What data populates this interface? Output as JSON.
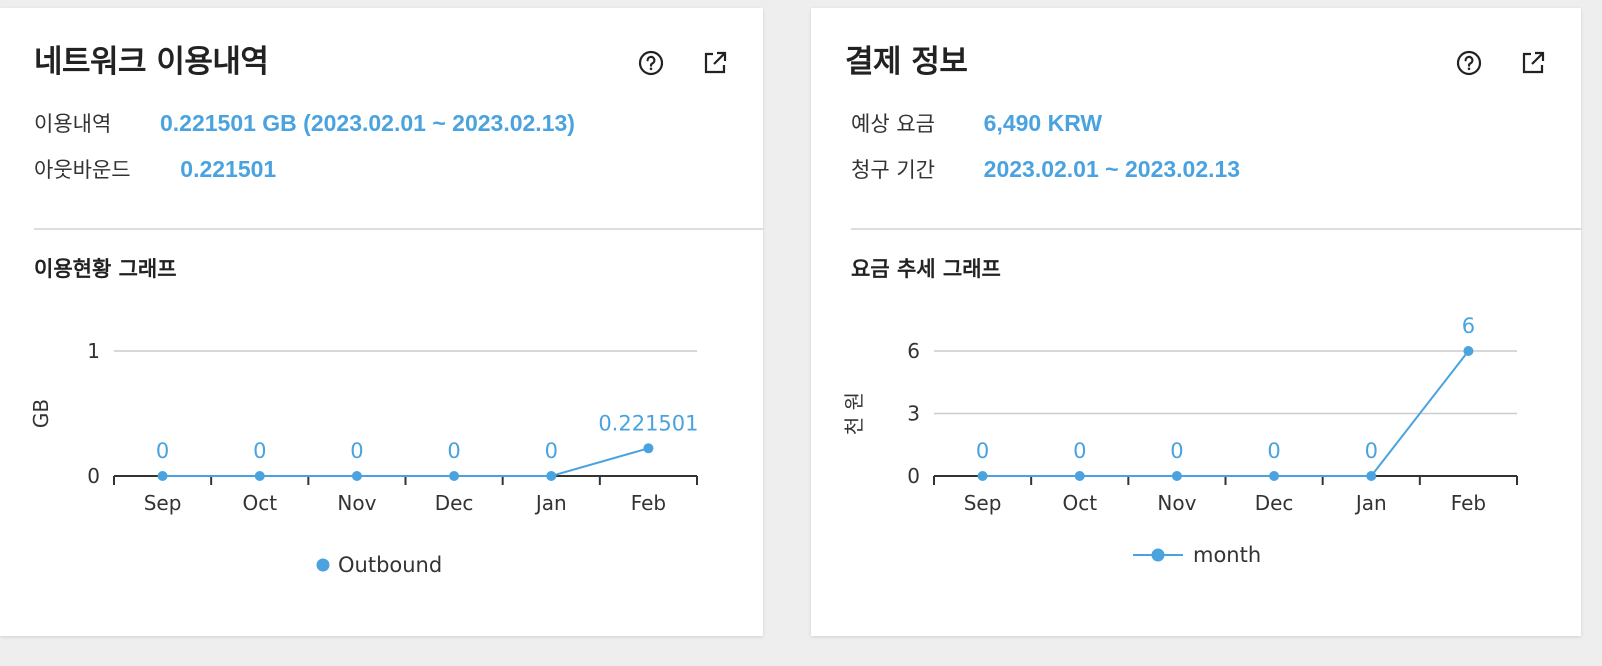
{
  "network": {
    "title": "네트워크 이용내역",
    "usage_label": "이용내역",
    "usage_value": "0.221501 GB (2023.02.01 ~ 2023.02.13)",
    "outbound_label": "아웃바운드",
    "outbound_value": "0.221501",
    "graph_title": "이용현황 그래프",
    "legend": "Outbound",
    "help_icon": "help-circle-icon",
    "external_icon": "external-link-icon"
  },
  "billing": {
    "title": "결제 정보",
    "estimate_label": "예상 요금",
    "estimate_value": "6,490 KRW",
    "period_label": "청구 기간",
    "period_value": "2023.02.01 ~ 2023.02.13",
    "graph_title": "요금 추세 그래프",
    "legend": "month",
    "help_icon": "help-circle-icon",
    "external_icon": "external-link-icon"
  },
  "colors": {
    "accent": "#4aa3df",
    "grid": "#cccccc",
    "axis": "#333333"
  },
  "chart_data": [
    {
      "type": "line",
      "categories": [
        "Sep",
        "Oct",
        "Nov",
        "Dec",
        "Jan",
        "Feb"
      ],
      "series": [
        {
          "name": "Outbound",
          "values": [
            0,
            0,
            0,
            0,
            0,
            0.221501
          ]
        }
      ],
      "data_labels": [
        "0",
        "0",
        "0",
        "0",
        "0",
        "0.221501"
      ],
      "ylabel": "GB",
      "ylim": [
        0,
        1
      ],
      "yticks": [
        0,
        1
      ],
      "grid": true,
      "legend_position": "bottom-center"
    },
    {
      "type": "line",
      "categories": [
        "Sep",
        "Oct",
        "Nov",
        "Dec",
        "Jan",
        "Feb"
      ],
      "series": [
        {
          "name": "month",
          "values": [
            0,
            0,
            0,
            0,
            0,
            6
          ]
        }
      ],
      "data_labels": [
        "0",
        "0",
        "0",
        "0",
        "0",
        "6"
      ],
      "ylabel": "천 원",
      "ylim": [
        0,
        6
      ],
      "yticks": [
        0,
        3,
        6
      ],
      "grid": true,
      "legend_position": "bottom-center"
    }
  ]
}
